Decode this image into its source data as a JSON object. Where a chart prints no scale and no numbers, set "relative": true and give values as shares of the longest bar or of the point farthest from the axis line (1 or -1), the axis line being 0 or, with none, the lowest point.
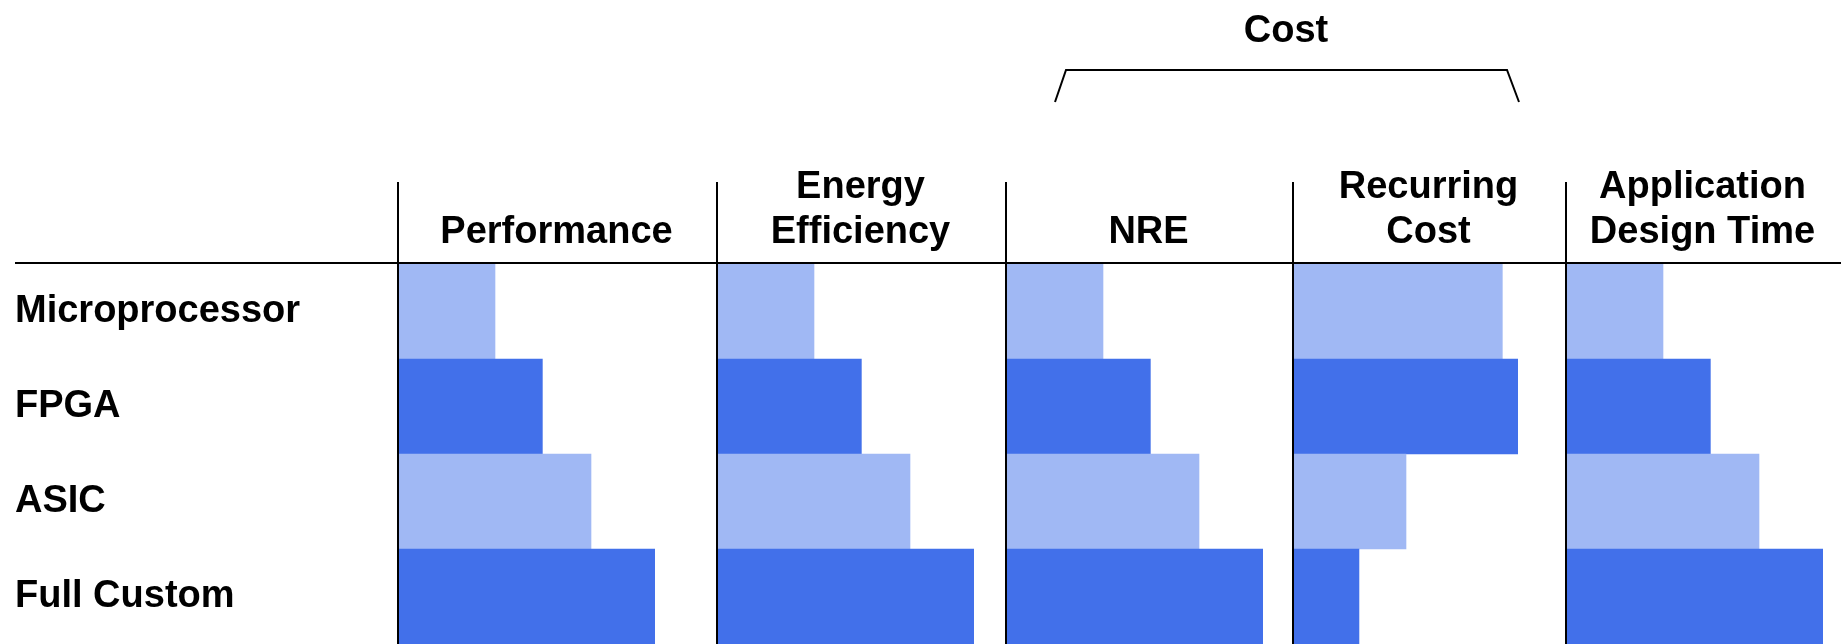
{
  "chart_data": [
    {
      "type": "bar",
      "title": "Performance",
      "orientation": "horizontal",
      "relative": true,
      "categories": [
        "Microprocessor",
        "FPGA",
        "ASIC",
        "Full Custom"
      ],
      "values": [
        0.375,
        0.56,
        0.75,
        1
      ],
      "colors": [
        "#a0b8f4",
        "#4270ea",
        "#a0b8f4",
        "#4270ea"
      ]
    },
    {
      "type": "bar",
      "title": "Energy Efficiency",
      "orientation": "horizontal",
      "relative": true,
      "categories": [
        null,
        null,
        null,
        null
      ],
      "values": [
        0.375,
        0.56,
        0.75,
        1
      ],
      "colors": [
        "#a0b8f4",
        "#4270ea",
        "#a0b8f4",
        "#4270ea"
      ]
    },
    {
      "type": "bar",
      "title": "NRE",
      "orientation": "horizontal",
      "relative": true,
      "annotations": [
        "Cost"
      ],
      "categories": [
        null,
        null,
        null,
        null
      ],
      "values": [
        0.375,
        0.56,
        0.75,
        1
      ],
      "colors": [
        "#a0b8f4",
        "#4270ea",
        "#a0b8f4",
        "#4270ea"
      ]
    },
    {
      "type": "bar",
      "title": "Recurring Cost",
      "orientation": "horizontal",
      "relative": true,
      "categories": [
        null,
        null,
        null,
        null
      ],
      "values": [
        0.93,
        1,
        0.5,
        0.29
      ],
      "colors": [
        "#a0b8f4",
        "#4270ea",
        "#a0b8f4",
        "#4270ea"
      ]
    },
    {
      "type": "bar",
      "title": "Application Design Time",
      "orientation": "horizontal",
      "relative": true,
      "categories": [
        null,
        null,
        null,
        null
      ],
      "values": [
        0.375,
        0.56,
        0.75,
        1
      ],
      "colors": [
        "#a0b8f4",
        "#4270ea",
        "#a0b8f4",
        "#4270ea"
      ]
    }
  ]
}
